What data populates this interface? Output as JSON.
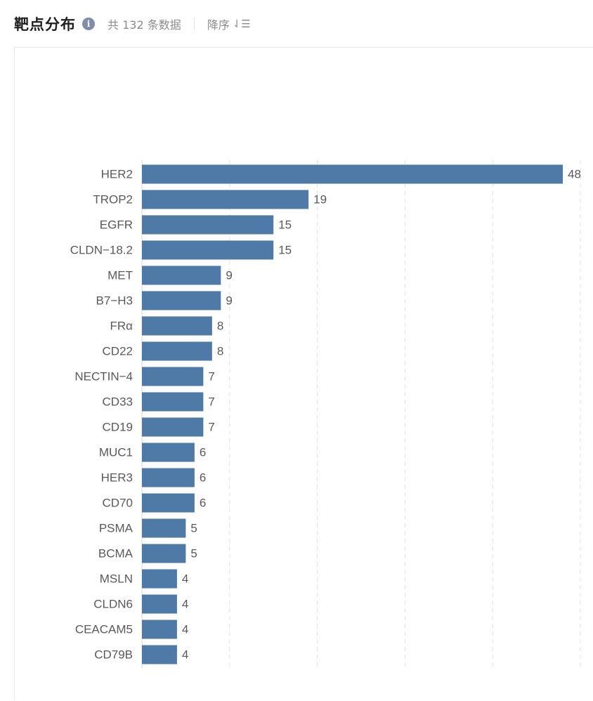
{
  "header": {
    "title": "靶点分布",
    "info_icon": "info-icon",
    "count_text": "共 132 条数据",
    "sort_label": "降序",
    "sort_icon": "sort-descending-icon"
  },
  "chart_data": {
    "type": "bar",
    "orientation": "horizontal",
    "categories": [
      "HER2",
      "TROP2",
      "EGFR",
      "CLDN−18.2",
      "MET",
      "B7−H3",
      "FRα",
      "CD22",
      "NECTIN−4",
      "CD33",
      "CD19",
      "MUC1",
      "HER3",
      "CD70",
      "PSMA",
      "BCMA",
      "MSLN",
      "CLDN6",
      "CEACAM5",
      "CD79B"
    ],
    "values": [
      48,
      19,
      15,
      15,
      9,
      9,
      8,
      8,
      7,
      7,
      7,
      6,
      6,
      6,
      5,
      5,
      4,
      4,
      4,
      4
    ],
    "xlim": [
      0,
      50
    ],
    "grid": true,
    "bar_color": "#4f79a7",
    "grid_color": "#e0e0e0"
  }
}
